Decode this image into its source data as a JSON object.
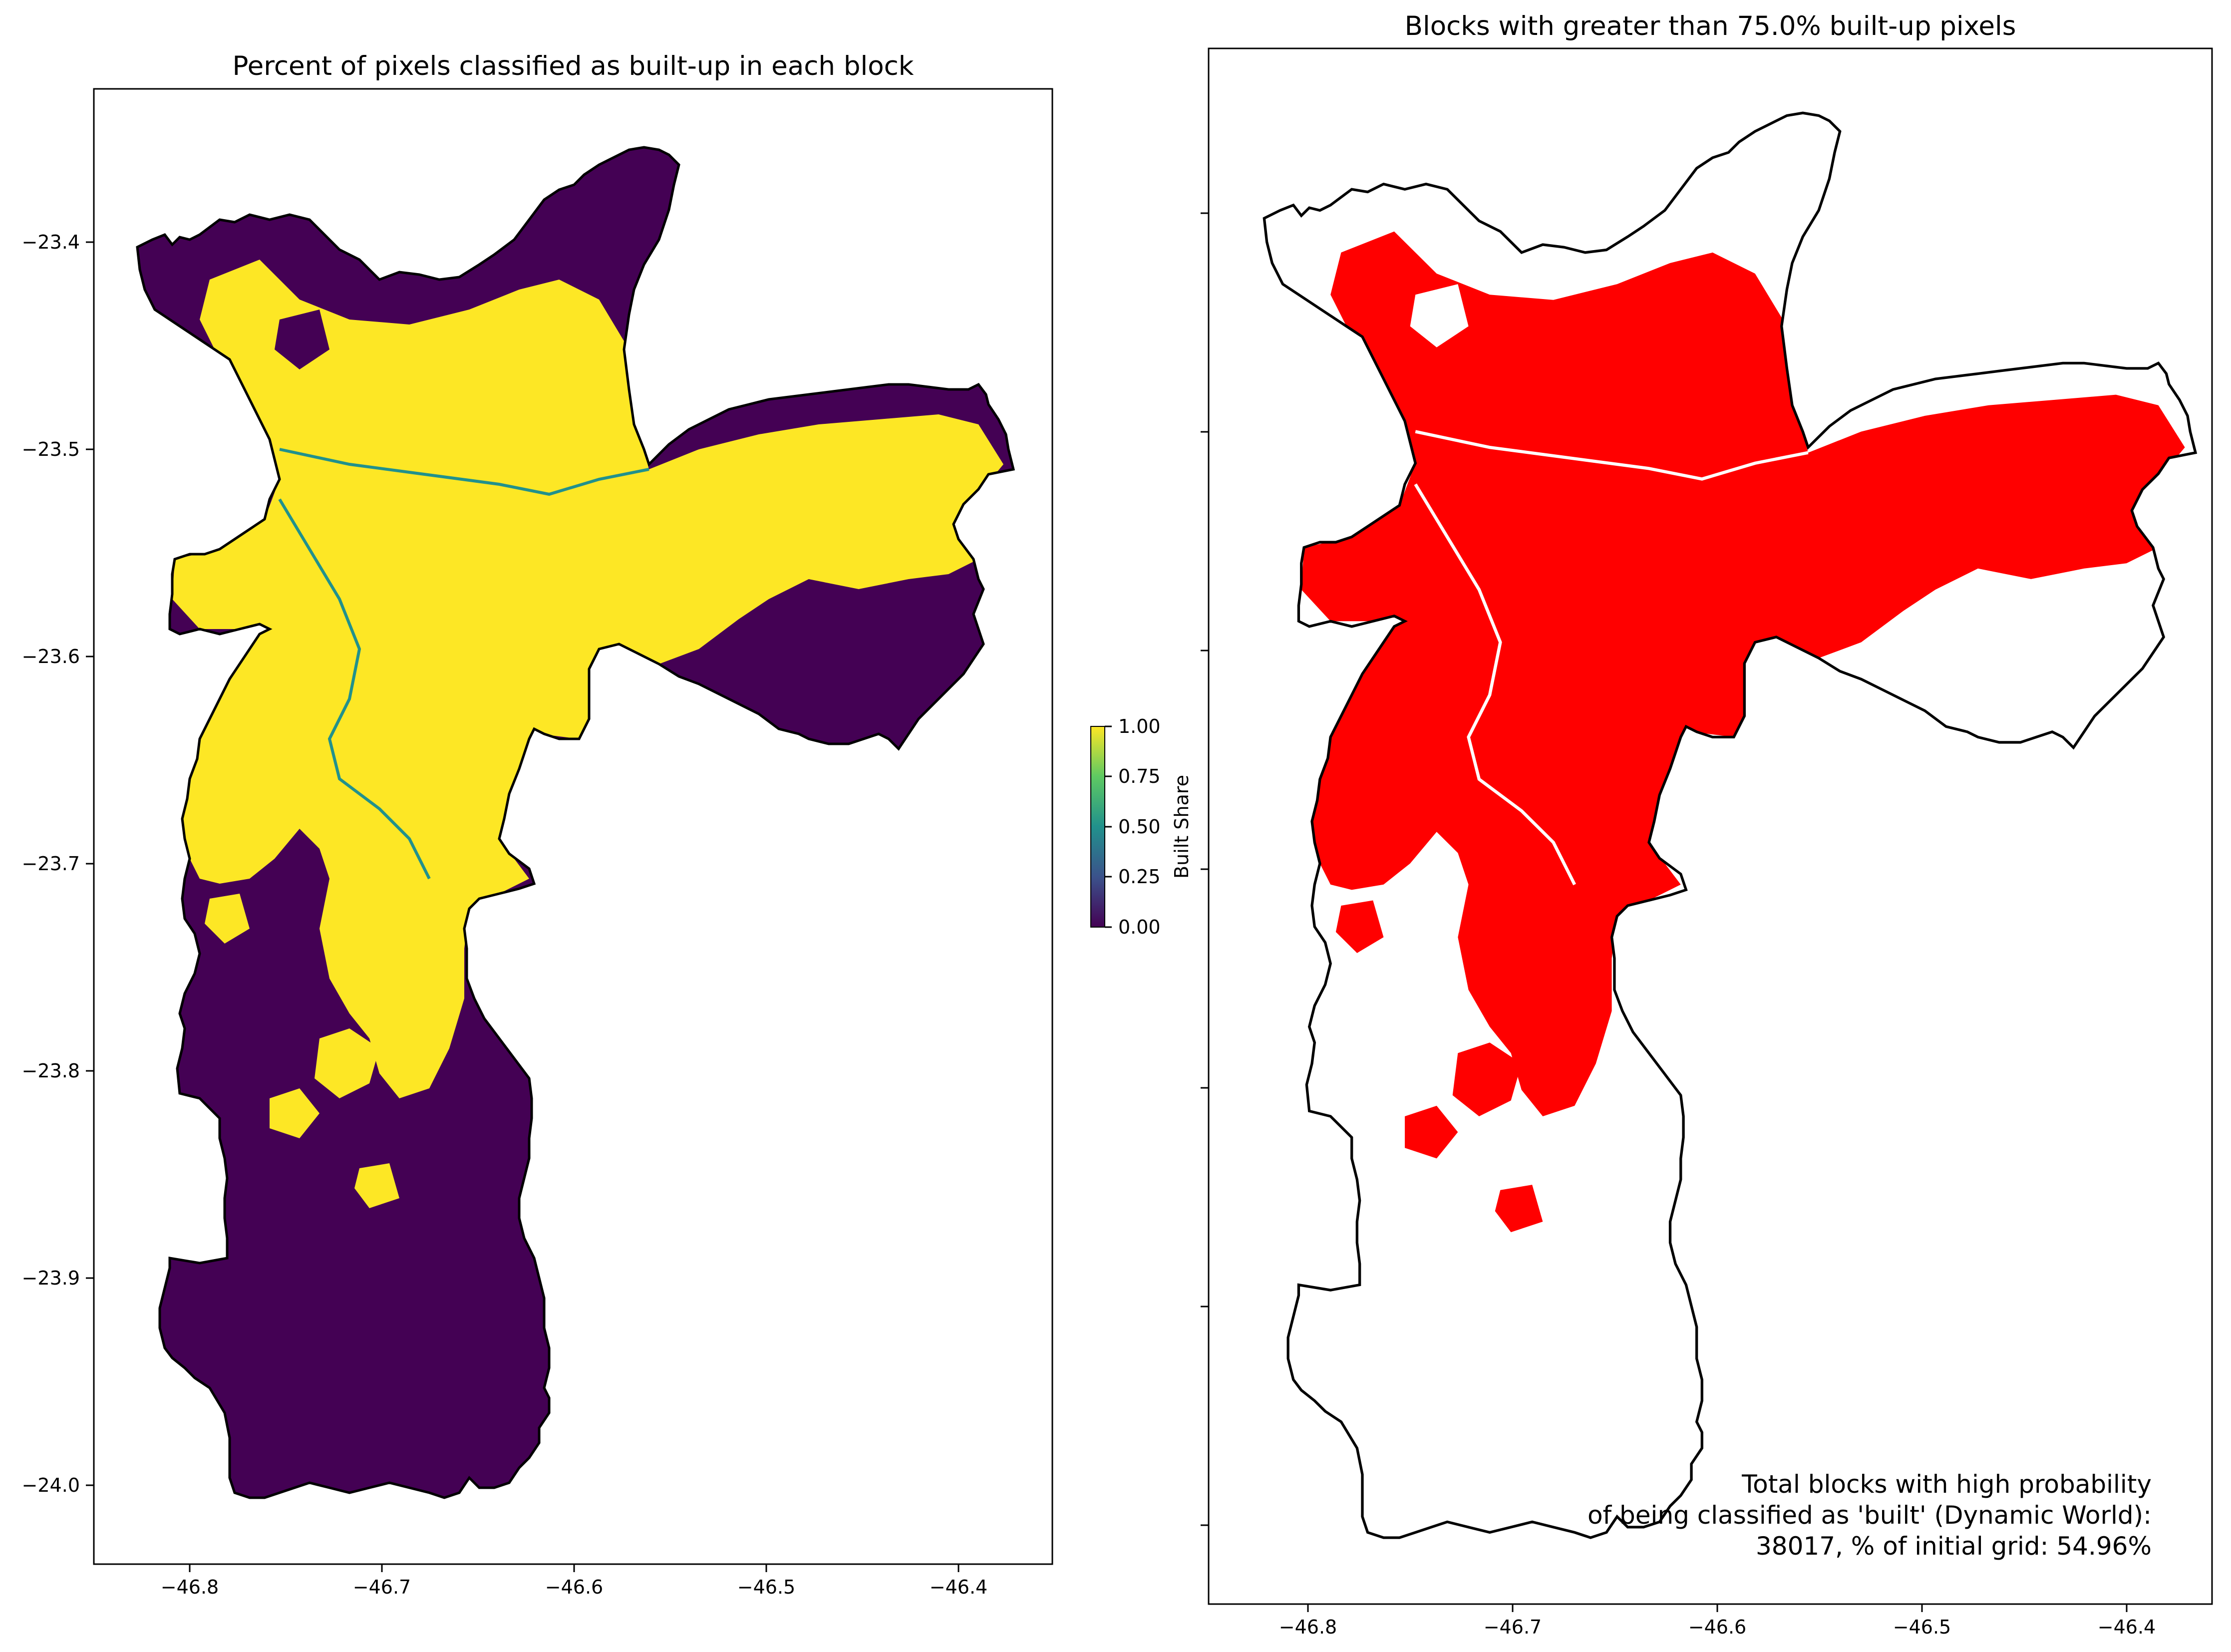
{
  "left_panel": {
    "title": "Percent of pixels classified as built-up in each block",
    "x_ticks": [
      "−46.8",
      "−46.7",
      "−46.6",
      "−46.5",
      "−46.4"
    ],
    "y_ticks": [
      "−23.4",
      "−23.5",
      "−23.6",
      "−23.7",
      "−23.8",
      "−23.9",
      "−24.0"
    ],
    "colormap": "viridis",
    "low_color": "#440154",
    "mid_color": "#21918c",
    "high_color": "#fde725"
  },
  "colorbar": {
    "label": "Built Share",
    "ticks": [
      "0.00",
      "0.25",
      "0.50",
      "0.75",
      "1.00"
    ],
    "range": [
      0,
      1
    ]
  },
  "right_panel": {
    "title": "Blocks with greater than 75.0% built-up pixels",
    "x_ticks": [
      "−46.8",
      "−46.7",
      "−46.6",
      "−46.5",
      "−46.4"
    ],
    "fill_color": "#ff0000",
    "annotation": {
      "line1": "Total blocks with high probability",
      "line2": "of being classified as 'built' (Dynamic World):",
      "line3": "38017, % of initial grid: 54.96%"
    }
  },
  "map": {
    "lon_range": [
      -46.85,
      -46.35
    ],
    "lat_range": [
      -24.03,
      -23.37
    ],
    "threshold_percent": 75.0,
    "total_blocks": 38017,
    "percent_of_grid": 54.96
  }
}
